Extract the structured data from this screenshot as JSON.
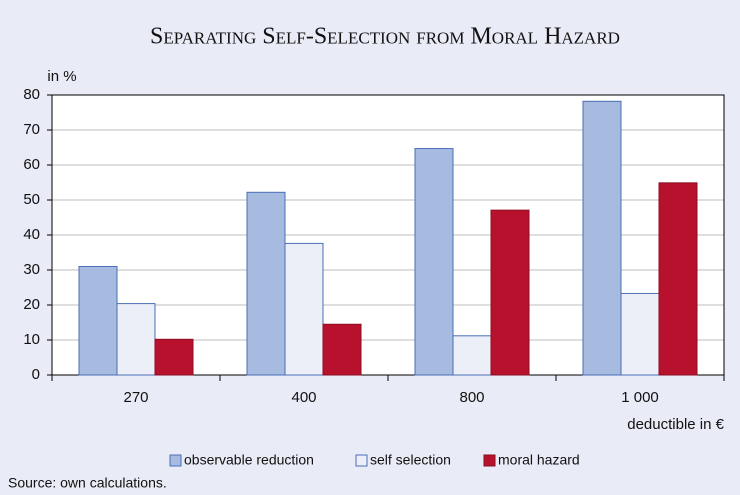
{
  "chart_data": {
    "type": "bar",
    "title": "Separating Self-Selection from Moral Hazard",
    "y_label": "in %",
    "x_label": "deductible in €",
    "source": "Source: own calculations.",
    "categories": [
      "270",
      "400",
      "800",
      "1 000"
    ],
    "series": [
      {
        "name": "observable reduction",
        "color": "#a7bbe0",
        "values": [
          31,
          52.2,
          64.7,
          78.2
        ]
      },
      {
        "name": "self selection",
        "color": "#eceef8",
        "values": [
          20.4,
          37.6,
          11.2,
          23.3
        ]
      },
      {
        "name": "moral hazard",
        "color": "#b8112e",
        "values": [
          10.2,
          14.5,
          47.1,
          54.9
        ]
      }
    ],
    "ylim": [
      0,
      80
    ],
    "yticks": [
      0,
      10,
      20,
      30,
      40,
      50,
      60,
      70,
      80
    ],
    "grid": true,
    "legend": "bottom"
  }
}
